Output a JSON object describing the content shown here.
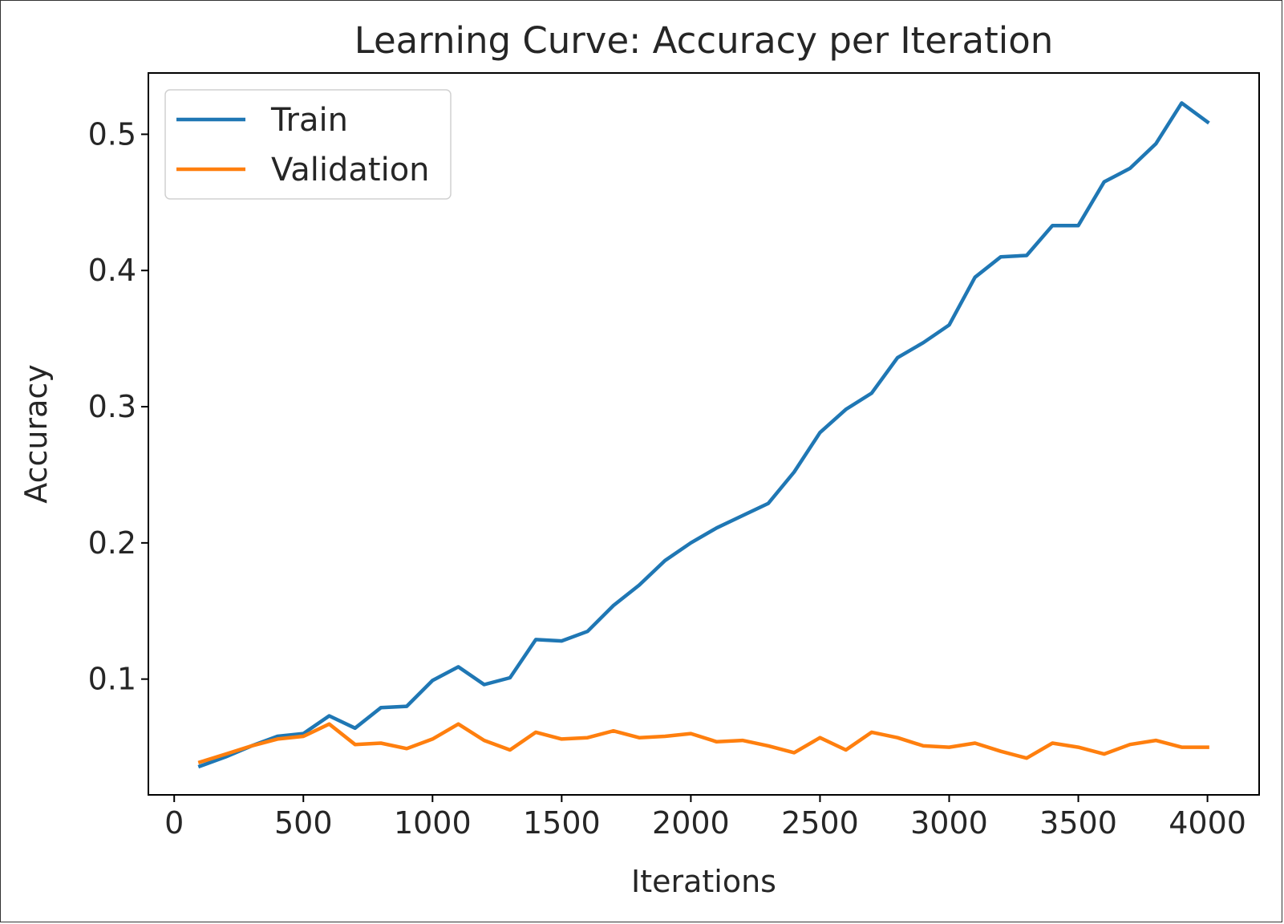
{
  "chart_data": {
    "type": "line",
    "title": "Learning Curve: Accuracy per Iteration",
    "xlabel": "Iterations",
    "ylabel": "Accuracy",
    "xlim": [
      -100,
      4200
    ],
    "ylim": [
      0.015,
      0.545
    ],
    "xticks": [
      0,
      500,
      1000,
      1500,
      2000,
      2500,
      3000,
      3500,
      4000
    ],
    "xtick_labels": [
      "0",
      "500",
      "1000",
      "1500",
      "2000",
      "2500",
      "3000",
      "3500",
      "4000"
    ],
    "yticks": [
      0.1,
      0.2,
      0.3,
      0.4,
      0.5
    ],
    "ytick_labels": [
      "0.1",
      "0.2",
      "0.3",
      "0.4",
      "0.5"
    ],
    "grid": false,
    "legend_position": "upper-left",
    "x": [
      100,
      200,
      300,
      400,
      500,
      600,
      700,
      800,
      900,
      1000,
      1100,
      1200,
      1300,
      1400,
      1500,
      1600,
      1700,
      1800,
      1900,
      2000,
      2100,
      2200,
      2300,
      2400,
      2500,
      2600,
      2700,
      2800,
      2900,
      3000,
      3100,
      3200,
      3300,
      3400,
      3500,
      3600,
      3700,
      3800,
      3900,
      4000
    ],
    "series": [
      {
        "name": "Train",
        "color": "#1f77b4",
        "values": [
          0.036,
          0.043,
          0.051,
          0.058,
          0.06,
          0.073,
          0.064,
          0.079,
          0.08,
          0.099,
          0.109,
          0.096,
          0.101,
          0.129,
          0.128,
          0.135,
          0.154,
          0.169,
          0.187,
          0.2,
          0.211,
          0.22,
          0.229,
          0.252,
          0.281,
          0.298,
          0.31,
          0.336,
          0.347,
          0.36,
          0.395,
          0.41,
          0.411,
          0.433,
          0.433,
          0.465,
          0.475,
          0.493,
          0.523,
          0.509
        ]
      },
      {
        "name": "Validation",
        "color": "#ff7f0e",
        "values": [
          0.039,
          0.045,
          0.051,
          0.056,
          0.058,
          0.067,
          0.052,
          0.053,
          0.049,
          0.056,
          0.067,
          0.055,
          0.048,
          0.061,
          0.056,
          0.057,
          0.062,
          0.057,
          0.058,
          0.06,
          0.054,
          0.055,
          0.051,
          0.046,
          0.057,
          0.048,
          0.061,
          0.057,
          0.051,
          0.05,
          0.053,
          0.047,
          0.042,
          0.053,
          0.05,
          0.045,
          0.052,
          0.055,
          0.05,
          0.05
        ]
      }
    ]
  }
}
